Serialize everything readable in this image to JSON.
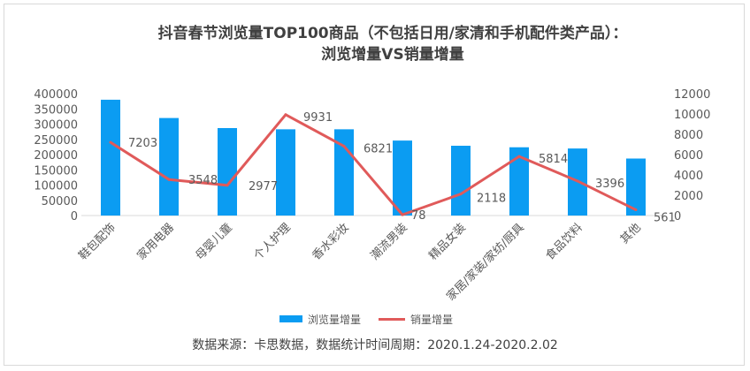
{
  "title_line1": "抖音春节浏览量TOP100商品（不包括日用/家清和手机配件类产品）：",
  "title_line2": "浏览增量VS销量增量",
  "source_note": "数据来源：卡思数据，数据统计时间周期：2020.1.24-2020.2.02",
  "colors": {
    "bar": "#0b9cf2",
    "line": "#e05a5a",
    "axis_text": "#595959"
  },
  "chart_data": {
    "type": "bar",
    "categories": [
      "鞋包配饰",
      "家用电器",
      "母婴儿童",
      "个人护理",
      "香水彩妆",
      "潮流男装",
      "精品女装",
      "家居/家装/家纺/厨具",
      "食品饮料",
      "其他"
    ],
    "series": [
      {
        "name": "浏览量增量",
        "type": "bar",
        "axis": "left",
        "values": [
          380000,
          320000,
          287000,
          283000,
          283000,
          246000,
          229000,
          224000,
          220000,
          187000
        ]
      },
      {
        "name": "销量增量",
        "type": "line",
        "axis": "right",
        "values": [
          7203,
          3548,
          2977,
          9931,
          6821,
          78,
          2118,
          5814,
          3396,
          561
        ]
      }
    ],
    "y_left": {
      "min": 0,
      "max": 400000,
      "ticks": [
        "0",
        "50000",
        "100000",
        "150000",
        "200000",
        "250000",
        "300000",
        "350000",
        "400000"
      ]
    },
    "y_right": {
      "min": 0,
      "max": 12000,
      "ticks": [
        "0",
        "2000",
        "4000",
        "6000",
        "8000",
        "10000",
        "12000"
      ]
    },
    "line_labels": [
      "7203",
      "3548",
      "2977",
      "9931",
      "6821",
      "78",
      "2118",
      "5814",
      "3396",
      "561"
    ],
    "legend_position": "bottom",
    "grid": false
  }
}
